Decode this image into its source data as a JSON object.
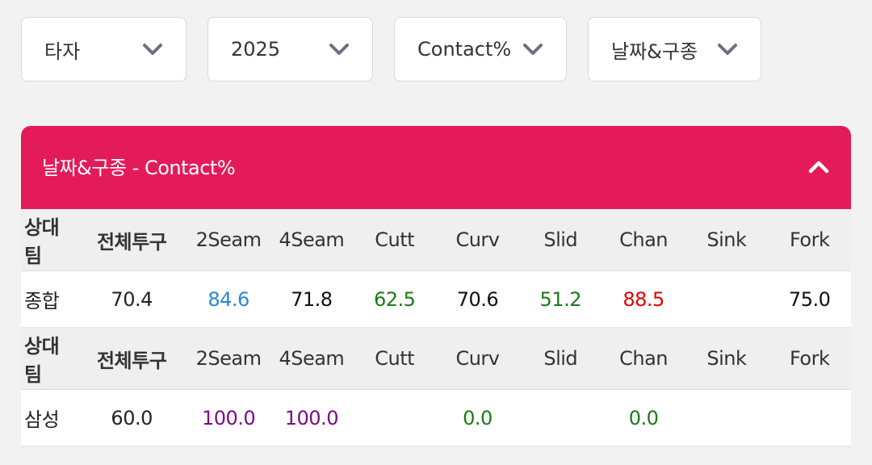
{
  "filters": [
    {
      "label": "타자"
    },
    {
      "label": "2025"
    },
    {
      "label": "Contact%"
    },
    {
      "label": "날짜&구종"
    }
  ],
  "panel": {
    "title": "날짜&구종 - Contact%"
  },
  "columns": [
    "상대팀",
    "전체투구",
    "2Seam",
    "4Seam",
    "Cutt",
    "Curv",
    "Slid",
    "Chan",
    "Sink",
    "Fork"
  ],
  "colors": {
    "accent": "#e31b5a",
    "blue": "#2a86d4",
    "green": "#1a7a1a",
    "red": "#e60000",
    "purple": "#7a0a8a",
    "black": "#111111"
  },
  "rows": [
    {
      "team": "종합",
      "total": "70.4",
      "values": [
        {
          "text": "84.6",
          "color": "blue"
        },
        {
          "text": "71.8",
          "color": "black"
        },
        {
          "text": "62.5",
          "color": "green"
        },
        {
          "text": "70.6",
          "color": "black"
        },
        {
          "text": "51.2",
          "color": "green"
        },
        {
          "text": "88.5",
          "color": "red"
        },
        {
          "text": "",
          "color": "black"
        },
        {
          "text": "75.0",
          "color": "black"
        }
      ]
    },
    {
      "team": "삼성",
      "total": "60.0",
      "values": [
        {
          "text": "100.0",
          "color": "purple"
        },
        {
          "text": "100.0",
          "color": "purple"
        },
        {
          "text": "",
          "color": "black"
        },
        {
          "text": "0.0",
          "color": "green"
        },
        {
          "text": "",
          "color": "black"
        },
        {
          "text": "0.0",
          "color": "green"
        },
        {
          "text": "",
          "color": "black"
        },
        {
          "text": "",
          "color": "black"
        }
      ]
    }
  ]
}
